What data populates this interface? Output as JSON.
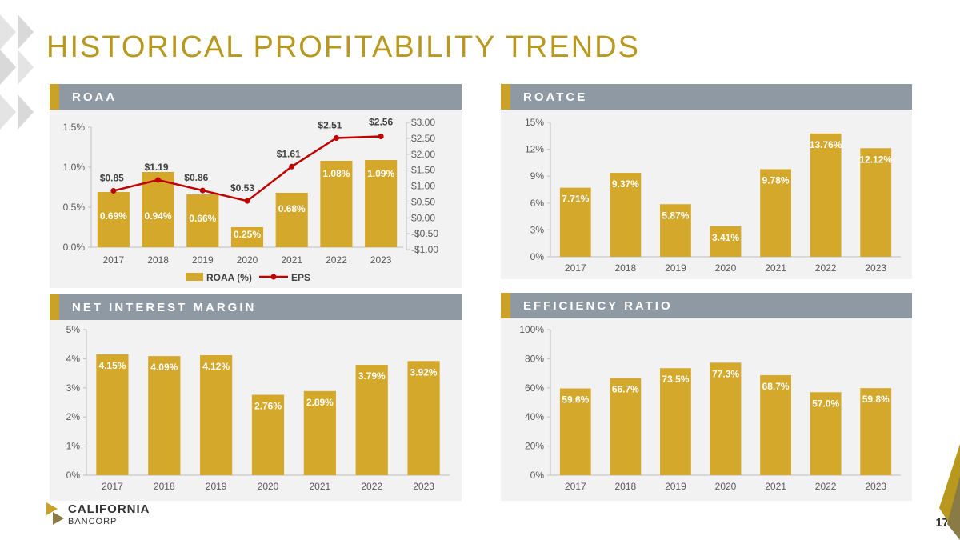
{
  "page_title": "HISTORICAL PROFITABILITY TRENDS",
  "page_number": "17",
  "logo": {
    "line1": "CALIFORNIA",
    "line2": "BANCORP"
  },
  "colors": {
    "gold": "#c9a227",
    "bar": "#d4a82b",
    "red": "#c00000",
    "header": "#8f99a3",
    "title": "#b8981f"
  },
  "panels": {
    "roaa": {
      "title": "ROAA"
    },
    "roatce": {
      "title": "ROATCE"
    },
    "nim": {
      "title": "NET INTEREST MARGIN"
    },
    "efficiency": {
      "title": "EFFICIENCY RATIO"
    }
  },
  "chart_data": [
    {
      "id": "roaa",
      "type": "bar+line",
      "title": "ROAA",
      "categories": [
        "2017",
        "2018",
        "2019",
        "2020",
        "2021",
        "2022",
        "2023"
      ],
      "series": [
        {
          "name": "ROAA (%)",
          "type": "bar",
          "axis": "left",
          "values": [
            0.69,
            0.94,
            0.66,
            0.25,
            0.68,
            1.08,
            1.09
          ],
          "labels": [
            "0.69%",
            "0.94%",
            "0.66%",
            "0.25%",
            "0.68%",
            "1.08%",
            "1.09%"
          ]
        },
        {
          "name": "EPS",
          "type": "line",
          "axis": "right",
          "values": [
            0.85,
            1.19,
            0.86,
            0.53,
            1.61,
            2.51,
            2.56
          ],
          "labels": [
            "$0.85",
            "$1.19",
            "$0.86",
            "$0.53",
            "$1.61",
            "$2.51",
            "$2.56"
          ]
        }
      ],
      "y_left": {
        "range": [
          0,
          1.5
        ],
        "ticks": [
          0,
          0.5,
          1.0,
          1.5
        ],
        "tick_labels": [
          "0.0%",
          "0.5%",
          "1.0%",
          "1.5%"
        ]
      },
      "y_right": {
        "range": [
          -1,
          3
        ],
        "ticks": [
          -1,
          -0.5,
          0,
          0.5,
          1,
          1.5,
          2,
          2.5,
          3
        ],
        "tick_labels": [
          "-$1.00",
          "-$0.50",
          "$0.00",
          "$0.50",
          "$1.00",
          "$1.50",
          "$2.00",
          "$2.50",
          "$3.00"
        ]
      },
      "legend": {
        "placement": "bottom",
        "items": [
          "ROAA (%)",
          "EPS"
        ]
      }
    },
    {
      "id": "roatce",
      "type": "bar",
      "title": "ROATCE",
      "categories": [
        "2017",
        "2018",
        "2019",
        "2020",
        "2021",
        "2022",
        "2023"
      ],
      "values": [
        7.71,
        9.37,
        5.87,
        3.41,
        9.78,
        13.76,
        12.12
      ],
      "labels": [
        "7.71%",
        "9.37%",
        "5.87%",
        "3.41%",
        "9.78%",
        "13.76%",
        "12.12%"
      ],
      "ylim": [
        0,
        15
      ],
      "ticks": [
        0,
        3,
        6,
        9,
        12,
        15
      ],
      "tick_labels": [
        "0%",
        "3%",
        "6%",
        "9%",
        "12%",
        "15%"
      ]
    },
    {
      "id": "nim",
      "type": "bar",
      "title": "NET INTEREST MARGIN",
      "categories": [
        "2017",
        "2018",
        "2019",
        "2020",
        "2021",
        "2022",
        "2023"
      ],
      "values": [
        4.15,
        4.09,
        4.12,
        2.76,
        2.89,
        3.79,
        3.92
      ],
      "labels": [
        "4.15%",
        "4.09%",
        "4.12%",
        "2.76%",
        "2.89%",
        "3.79%",
        "3.92%"
      ],
      "ylim": [
        0,
        5
      ],
      "ticks": [
        0,
        1,
        2,
        3,
        4,
        5
      ],
      "tick_labels": [
        "0%",
        "1%",
        "2%",
        "3%",
        "4%",
        "5%"
      ]
    },
    {
      "id": "efficiency",
      "type": "bar",
      "title": "EFFICIENCY RATIO",
      "categories": [
        "2017",
        "2018",
        "2019",
        "2020",
        "2021",
        "2022",
        "2023"
      ],
      "values": [
        59.6,
        66.7,
        73.5,
        77.3,
        68.7,
        57.0,
        59.8
      ],
      "labels": [
        "59.6%",
        "66.7%",
        "73.5%",
        "77.3%",
        "68.7%",
        "57.0%",
        "59.8%"
      ],
      "ylim": [
        0,
        100
      ],
      "ticks": [
        0,
        20,
        40,
        60,
        80,
        100
      ],
      "tick_labels": [
        "0%",
        "20%",
        "40%",
        "60%",
        "80%",
        "100%"
      ]
    }
  ]
}
